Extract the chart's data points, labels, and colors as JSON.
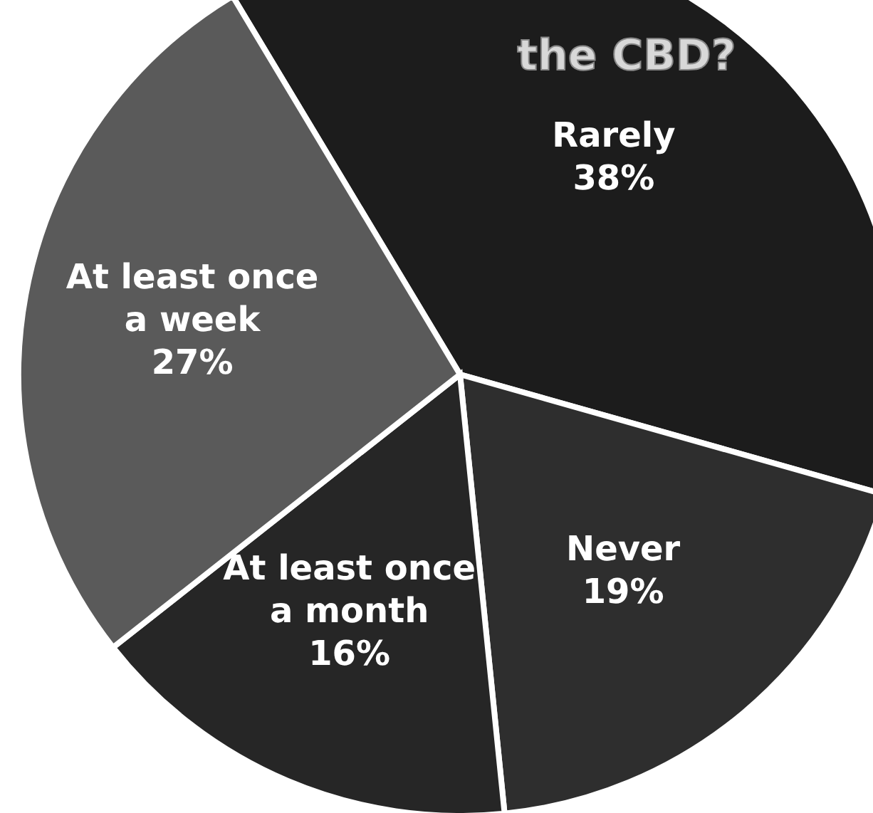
{
  "chart_data": {
    "type": "pie",
    "title": "the CBD?",
    "categories": [
      "Rarely",
      "Never",
      "At least once a month",
      "At least once a week"
    ],
    "values": [
      38,
      19,
      16,
      27
    ],
    "value_labels": [
      "38%",
      "19%",
      "16%",
      "27%"
    ],
    "colors": [
      "#1c1c1c",
      "#2e2e2e",
      "#262626",
      "#5a5a5a"
    ]
  }
}
